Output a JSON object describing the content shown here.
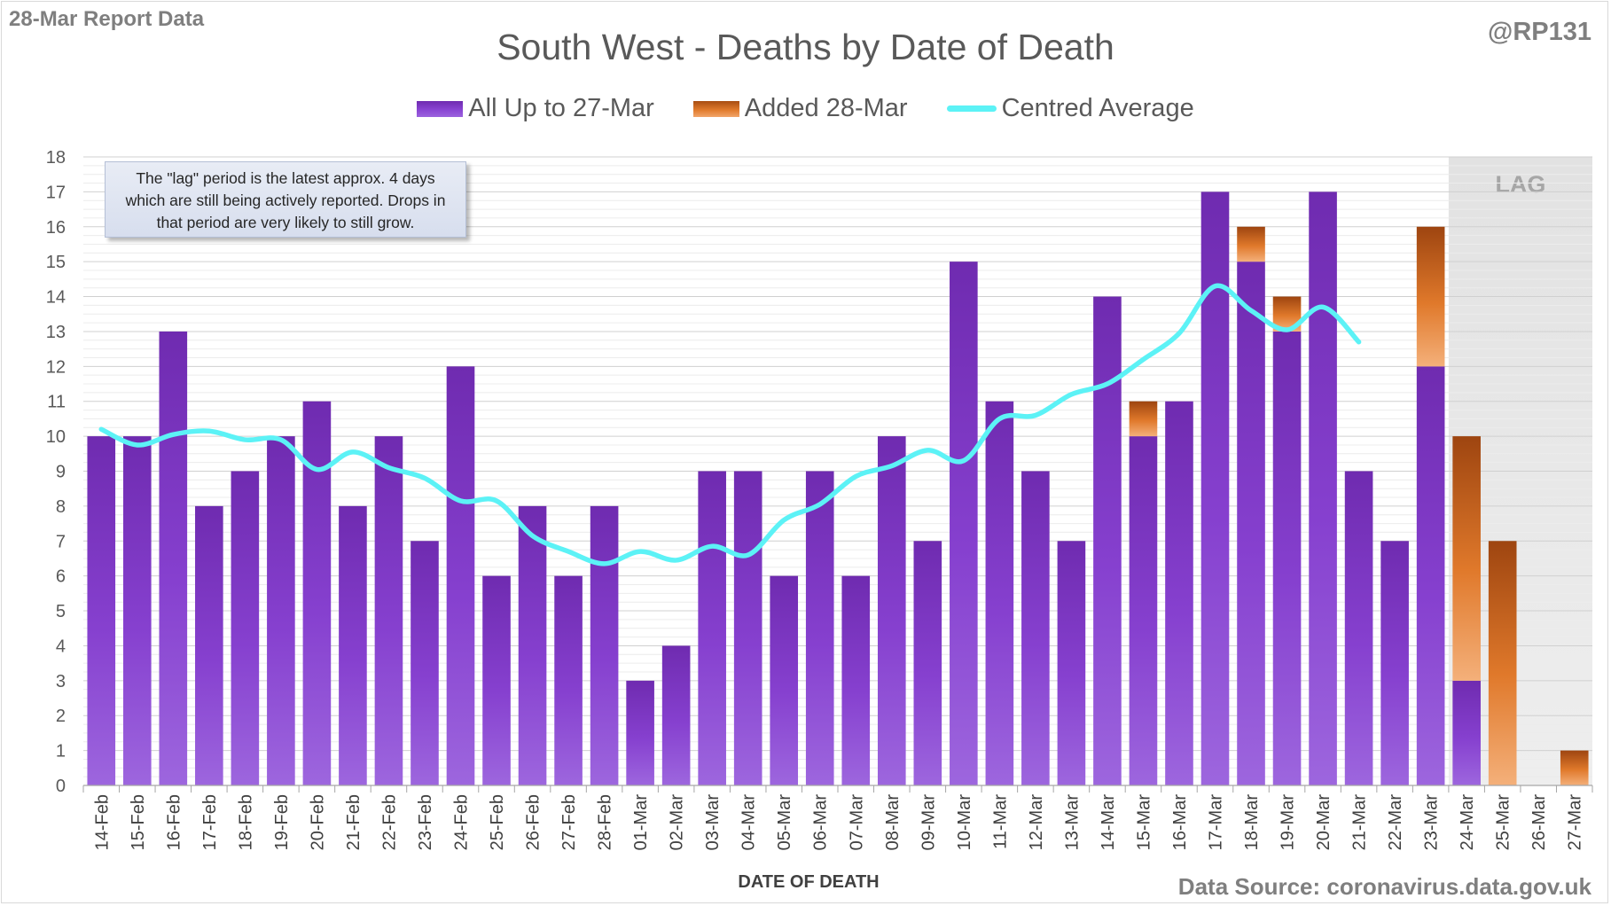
{
  "corner_left": "28-Mar Report Data",
  "corner_right": "@RP131",
  "note": "The \"lag\" period is the latest approx. 4 days which are still being actively reported. Drops in that period are very likely to still grow.",
  "source": "Data Source: coronavirus.data.gov.uk",
  "colors": {
    "purple": "#7b37c6",
    "orange": "#e07a2c",
    "average": "#5cf2f6",
    "lag_band": "#e6e6e6"
  },
  "chart_data": {
    "type": "bar",
    "title": "South West - Deaths by Date of Death",
    "xlabel": "DATE OF DEATH",
    "ylabel": "",
    "ylim": [
      0,
      18
    ],
    "yticks": [
      0,
      1,
      2,
      3,
      4,
      5,
      6,
      7,
      8,
      9,
      10,
      11,
      12,
      13,
      14,
      15,
      16,
      17,
      18
    ],
    "stacked": true,
    "grid": true,
    "legend_position": "top",
    "categories": [
      "14-Feb",
      "15-Feb",
      "16-Feb",
      "17-Feb",
      "18-Feb",
      "19-Feb",
      "20-Feb",
      "21-Feb",
      "22-Feb",
      "23-Feb",
      "24-Feb",
      "25-Feb",
      "26-Feb",
      "27-Feb",
      "28-Feb",
      "01-Mar",
      "02-Mar",
      "03-Mar",
      "04-Mar",
      "05-Mar",
      "06-Mar",
      "07-Mar",
      "08-Mar",
      "09-Mar",
      "10-Mar",
      "11-Mar",
      "12-Mar",
      "13-Mar",
      "14-Mar",
      "15-Mar",
      "16-Mar",
      "17-Mar",
      "18-Mar",
      "19-Mar",
      "20-Mar",
      "21-Mar",
      "22-Mar",
      "23-Mar",
      "24-Mar",
      "25-Mar",
      "26-Mar",
      "27-Mar"
    ],
    "series": [
      {
        "name": "All Up to 27-Mar",
        "kind": "bar",
        "values": [
          10,
          10,
          13,
          8,
          9,
          10,
          11,
          8,
          10,
          7,
          12,
          6,
          8,
          6,
          8,
          3,
          4,
          9,
          9,
          6,
          9,
          6,
          10,
          7,
          15,
          11,
          9,
          7,
          14,
          10,
          11,
          17,
          15,
          13,
          17,
          9,
          7,
          12,
          3,
          0,
          0,
          0
        ]
      },
      {
        "name": "Added 28-Mar",
        "kind": "bar",
        "values": [
          0,
          0,
          0,
          0,
          0,
          0,
          0,
          0,
          0,
          0,
          0,
          0,
          0,
          0,
          0,
          0,
          0,
          0,
          0,
          0,
          0,
          0,
          0,
          0,
          0,
          0,
          0,
          0,
          0,
          1,
          0,
          0,
          1,
          1,
          0,
          0,
          0,
          4,
          7,
          7,
          0,
          1
        ]
      },
      {
        "name": "Centred Average",
        "kind": "line",
        "values": [
          10.2,
          9.75,
          10.05,
          10.15,
          9.9,
          9.9,
          9.05,
          9.55,
          9.1,
          8.8,
          8.15,
          8.15,
          7.15,
          6.7,
          6.35,
          6.7,
          6.45,
          6.85,
          6.6,
          7.6,
          8.05,
          8.85,
          9.15,
          9.6,
          9.3,
          10.5,
          10.6,
          11.2,
          11.5,
          12.2,
          12.95,
          14.3,
          13.6,
          13.05,
          13.7,
          12.7,
          null,
          null,
          null,
          null,
          null,
          null
        ]
      }
    ],
    "annotations": [
      {
        "text": "LAG",
        "region": [
          "24-Mar",
          "27-Mar"
        ]
      }
    ]
  }
}
